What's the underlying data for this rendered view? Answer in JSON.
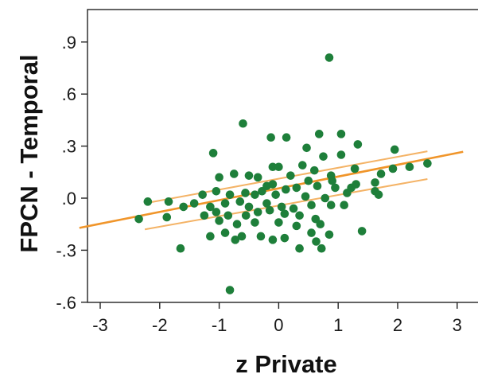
{
  "chart_data": {
    "type": "scatter",
    "title": "",
    "xlabel": "z Private",
    "ylabel": "FPCN - Temporal",
    "xlim": [
      -3.35,
      3.1
    ],
    "ylim": [
      -0.6,
      1.08
    ],
    "x_ticks": [
      -3,
      -2,
      -1,
      0,
      1,
      2,
      3
    ],
    "x_tick_labels": [
      "-3",
      "-2",
      "-1",
      "0",
      "1",
      "2",
      "3"
    ],
    "y_ticks": [
      -0.6,
      -0.3,
      0.0,
      0.3,
      0.6,
      0.9
    ],
    "y_tick_labels": [
      "-.6",
      "-.3",
      ".0",
      ".3",
      ".6",
      ".9"
    ],
    "grid": false,
    "colors": {
      "points": "#1e7f3a",
      "fit_line": "#f0952a",
      "ci_band": "#f4b366",
      "axis": "#222222"
    },
    "fit_line": {
      "slope": 0.068,
      "intercept": 0.0565
    },
    "ci_band": {
      "upper": [
        [
          -2.25,
          -0.03
        ],
        [
          2.5,
          0.27
        ]
      ],
      "lower": [
        [
          -2.25,
          -0.18
        ],
        [
          2.5,
          0.11
        ]
      ]
    },
    "points": [
      [
        0.85,
        0.81
      ],
      [
        -0.6,
        0.43
      ],
      [
        -0.13,
        0.35
      ],
      [
        0.13,
        0.35
      ],
      [
        0.68,
        0.37
      ],
      [
        1.05,
        0.37
      ],
      [
        0.47,
        0.29
      ],
      [
        1.33,
        0.31
      ],
      [
        1.95,
        0.28
      ],
      [
        -1.1,
        0.26
      ],
      [
        0.75,
        0.24
      ],
      [
        1.05,
        0.25
      ],
      [
        -0.5,
        0.13
      ],
      [
        -0.35,
        0.12
      ],
      [
        -0.1,
        0.18
      ],
      [
        0.0,
        0.18
      ],
      [
        0.2,
        0.13
      ],
      [
        0.4,
        0.19
      ],
      [
        0.6,
        0.16
      ],
      [
        0.88,
        0.13
      ],
      [
        1.28,
        0.17
      ],
      [
        1.72,
        0.14
      ],
      [
        2.2,
        0.18
      ],
      [
        2.5,
        0.2
      ],
      [
        -1.0,
        0.12
      ],
      [
        -0.75,
        0.14
      ],
      [
        -0.1,
        0.08
      ],
      [
        0.3,
        0.06
      ],
      [
        0.65,
        0.07
      ],
      [
        1.22,
        0.06
      ],
      [
        1.62,
        0.09
      ],
      [
        1.92,
        0.17
      ],
      [
        -1.28,
        0.02
      ],
      [
        -1.05,
        0.04
      ],
      [
        -0.82,
        0.02
      ],
      [
        -0.56,
        0.03
      ],
      [
        -0.4,
        0.02
      ],
      [
        -0.28,
        0.04
      ],
      [
        -0.05,
        0.02
      ],
      [
        0.12,
        0.05
      ],
      [
        0.45,
        0.01
      ],
      [
        0.78,
        0.0
      ],
      [
        0.95,
        0.06
      ],
      [
        1.15,
        0.03
      ],
      [
        1.62,
        0.04
      ],
      [
        1.68,
        0.02
      ],
      [
        -2.2,
        -0.02
      ],
      [
        -1.85,
        -0.02
      ],
      [
        -1.6,
        -0.05
      ],
      [
        -1.42,
        -0.03
      ],
      [
        -1.15,
        -0.05
      ],
      [
        -0.9,
        -0.03
      ],
      [
        -0.65,
        -0.02
      ],
      [
        -0.5,
        -0.05
      ],
      [
        -0.2,
        -0.03
      ],
      [
        0.05,
        -0.05
      ],
      [
        0.25,
        -0.06
      ],
      [
        0.55,
        -0.04
      ],
      [
        0.88,
        -0.04
      ],
      [
        1.1,
        -0.04
      ],
      [
        -1.25,
        -0.1
      ],
      [
        -1.05,
        -0.08
      ],
      [
        -0.85,
        -0.1
      ],
      [
        -0.55,
        -0.1
      ],
      [
        -0.35,
        -0.08
      ],
      [
        -0.15,
        -0.07
      ],
      [
        0.1,
        -0.09
      ],
      [
        0.35,
        -0.1
      ],
      [
        0.62,
        -0.12
      ],
      [
        -2.35,
        -0.12
      ],
      [
        -1.88,
        -0.11
      ],
      [
        -1.0,
        -0.13
      ],
      [
        -0.7,
        -0.15
      ],
      [
        -0.4,
        -0.14
      ],
      [
        0.0,
        -0.14
      ],
      [
        0.3,
        -0.16
      ],
      [
        0.7,
        -0.15
      ],
      [
        -0.9,
        -0.2
      ],
      [
        -0.3,
        -0.22
      ],
      [
        0.1,
        -0.23
      ],
      [
        0.55,
        -0.2
      ],
      [
        0.85,
        -0.21
      ],
      [
        1.4,
        -0.19
      ],
      [
        -1.15,
        -0.22
      ],
      [
        -0.73,
        -0.24
      ],
      [
        -0.62,
        -0.22
      ],
      [
        -0.1,
        -0.24
      ],
      [
        0.63,
        -0.25
      ],
      [
        0.72,
        -0.29
      ],
      [
        -1.65,
        -0.29
      ],
      [
        0.35,
        -0.29
      ],
      [
        -0.82,
        -0.53
      ],
      [
        0.9,
        0.1
      ],
      [
        1.3,
        0.08
      ],
      [
        -0.2,
        0.07
      ],
      [
        0.5,
        0.1
      ]
    ]
  }
}
